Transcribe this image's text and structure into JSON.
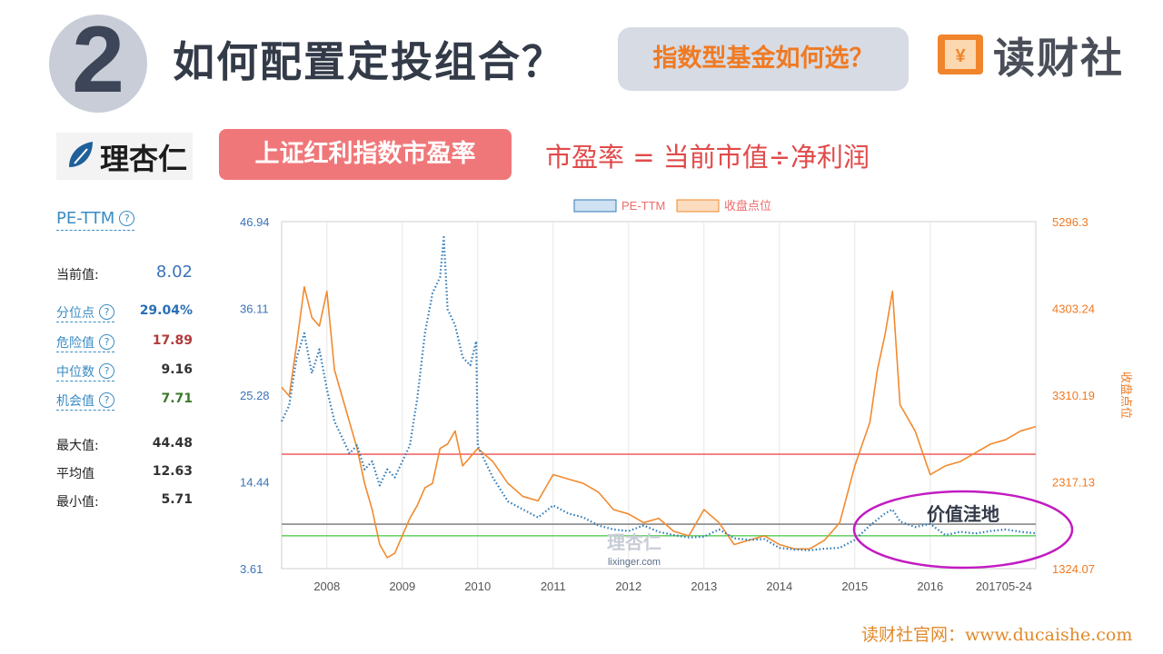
{
  "header": {
    "number": "2",
    "title": "如何配置定投组合？",
    "subtitle_pill": "指数型基金如何选？",
    "brand_name": "读财社"
  },
  "source_logo": {
    "name": "理杏仁"
  },
  "chart_title": "上证红利指数市盈率",
  "formula": "市盈率 = 当前市值÷净利润",
  "stats": {
    "metric": "PE-TTM",
    "current_label": "当前值:",
    "current_value": "8.02",
    "percentile_label": "分位点",
    "percentile_value": "29.04%",
    "danger_label": "危险值",
    "danger_value": "17.89",
    "median_label": "中位数",
    "median_value": "9.16",
    "opportunity_label": "机会值",
    "opportunity_value": "7.71",
    "max_label": "最大值:",
    "max_value": "44.48",
    "avg_label": "平均值",
    "avg_value": "12.63",
    "min_label": "最小值:",
    "min_value": "5.71"
  },
  "annotation": "价值洼地",
  "watermark": {
    "name": "理杏仁",
    "url": "lixinger.com"
  },
  "footer": "读财社官网：www.ducaishe.com",
  "colors": {
    "pe_line": "#2f7ab8",
    "price_line": "#f28a2e",
    "danger_line": "#ef6a6a",
    "median_line": "#8a8a8a",
    "opportunity_line": "#6cd36c",
    "annotation": "#c21bc2",
    "accent_orange": "#f07a22",
    "red_title": "#f07779"
  },
  "chart_data": {
    "type": "line",
    "legend": [
      "PE-TTM",
      "收盘点位"
    ],
    "legend_position": "top-center",
    "x_ticks": [
      "2008",
      "2009",
      "2010",
      "2011",
      "2012",
      "2013",
      "2014",
      "2015",
      "2016",
      "201705-24"
    ],
    "y_left": {
      "label": "",
      "ticks": [
        "3.61",
        "14.44",
        "25.28",
        "36.11",
        "46.94"
      ],
      "range": [
        3.61,
        46.94
      ]
    },
    "y_right": {
      "label": "收盘点位",
      "ticks": [
        "1324.07",
        "2317.13",
        "3310.19",
        "4303.24",
        "5296.3"
      ],
      "range": [
        1324.07,
        5296.3
      ]
    },
    "x_range": [
      2007.4,
      2017.4
    ],
    "reference_lines": [
      {
        "name": "危险值",
        "value": 17.89
      },
      {
        "name": "中位数",
        "value": 9.16
      },
      {
        "name": "机会值",
        "value": 7.71
      }
    ],
    "series": [
      {
        "name": "PE-TTM",
        "x": [
          2007.4,
          2007.5,
          2007.6,
          2007.7,
          2007.8,
          2007.9,
          2008.0,
          2008.1,
          2008.2,
          2008.3,
          2008.4,
          2008.5,
          2008.6,
          2008.7,
          2008.8,
          2008.9,
          2009.0,
          2009.1,
          2009.2,
          2009.3,
          2009.4,
          2009.5,
          2009.55,
          2009.6,
          2009.7,
          2009.8,
          2009.9,
          2009.98,
          2010.0,
          2010.2,
          2010.4,
          2010.6,
          2010.8,
          2011.0,
          2011.2,
          2011.4,
          2011.6,
          2011.8,
          2012.0,
          2012.2,
          2012.4,
          2012.6,
          2012.8,
          2013.0,
          2013.2,
          2013.4,
          2013.6,
          2013.8,
          2014.0,
          2014.2,
          2014.4,
          2014.6,
          2014.8,
          2015.0,
          2015.2,
          2015.4,
          2015.5,
          2015.6,
          2015.8,
          2016.0,
          2016.2,
          2016.4,
          2016.6,
          2016.8,
          2017.0,
          2017.2,
          2017.4
        ],
        "y": [
          22,
          24,
          30,
          33,
          28,
          31,
          26,
          22,
          20,
          18,
          19,
          16,
          17,
          14,
          16,
          15,
          17,
          19,
          25,
          33,
          38,
          40,
          45,
          36,
          34,
          30,
          29,
          32,
          18.9,
          15,
          12,
          11,
          10,
          11.5,
          10.5,
          10,
          9,
          8.5,
          8.3,
          9,
          8.2,
          7.8,
          7.5,
          7.6,
          8.5,
          7.4,
          7.2,
          7.3,
          6.2,
          6.0,
          5.9,
          6.1,
          6.2,
          7.2,
          9,
          10.5,
          11,
          9.5,
          8.8,
          9.2,
          7.8,
          8.2,
          8.0,
          8.3,
          8.5,
          8.2,
          8.02
        ]
      },
      {
        "name": "收盘点位",
        "x": [
          2007.4,
          2007.5,
          2007.6,
          2007.7,
          2007.8,
          2007.9,
          2008.0,
          2008.1,
          2008.2,
          2008.3,
          2008.4,
          2008.5,
          2008.6,
          2008.7,
          2008.8,
          2008.9,
          2009.0,
          2009.1,
          2009.2,
          2009.3,
          2009.4,
          2009.5,
          2009.6,
          2009.7,
          2009.8,
          2009.9,
          2010.0,
          2010.2,
          2010.4,
          2010.6,
          2010.8,
          2011.0,
          2011.2,
          2011.4,
          2011.6,
          2011.8,
          2012.0,
          2012.2,
          2012.4,
          2012.6,
          2012.8,
          2013.0,
          2013.2,
          2013.4,
          2013.6,
          2013.8,
          2014.0,
          2014.2,
          2014.4,
          2014.6,
          2014.8,
          2015.0,
          2015.2,
          2015.3,
          2015.4,
          2015.5,
          2015.6,
          2015.8,
          2016.0,
          2016.2,
          2016.4,
          2016.6,
          2016.8,
          2017.0,
          2017.2,
          2017.4
        ],
        "y": [
          3400,
          3300,
          3900,
          4550,
          4200,
          4100,
          4500,
          3600,
          3300,
          3000,
          2700,
          2300,
          2000,
          1600,
          1450,
          1500,
          1700,
          1900,
          2050,
          2250,
          2300,
          2700,
          2750,
          2900,
          2500,
          2600,
          2700,
          2550,
          2300,
          2150,
          2100,
          2400,
          2350,
          2300,
          2200,
          2000,
          1950,
          1850,
          1900,
          1750,
          1700,
          2000,
          1850,
          1600,
          1650,
          1700,
          1600,
          1550,
          1550,
          1650,
          1850,
          2500,
          3000,
          3600,
          4000,
          4500,
          3200,
          2900,
          2400,
          2500,
          2550,
          2650,
          2750,
          2800,
          2900,
          2950
        ]
      }
    ]
  }
}
